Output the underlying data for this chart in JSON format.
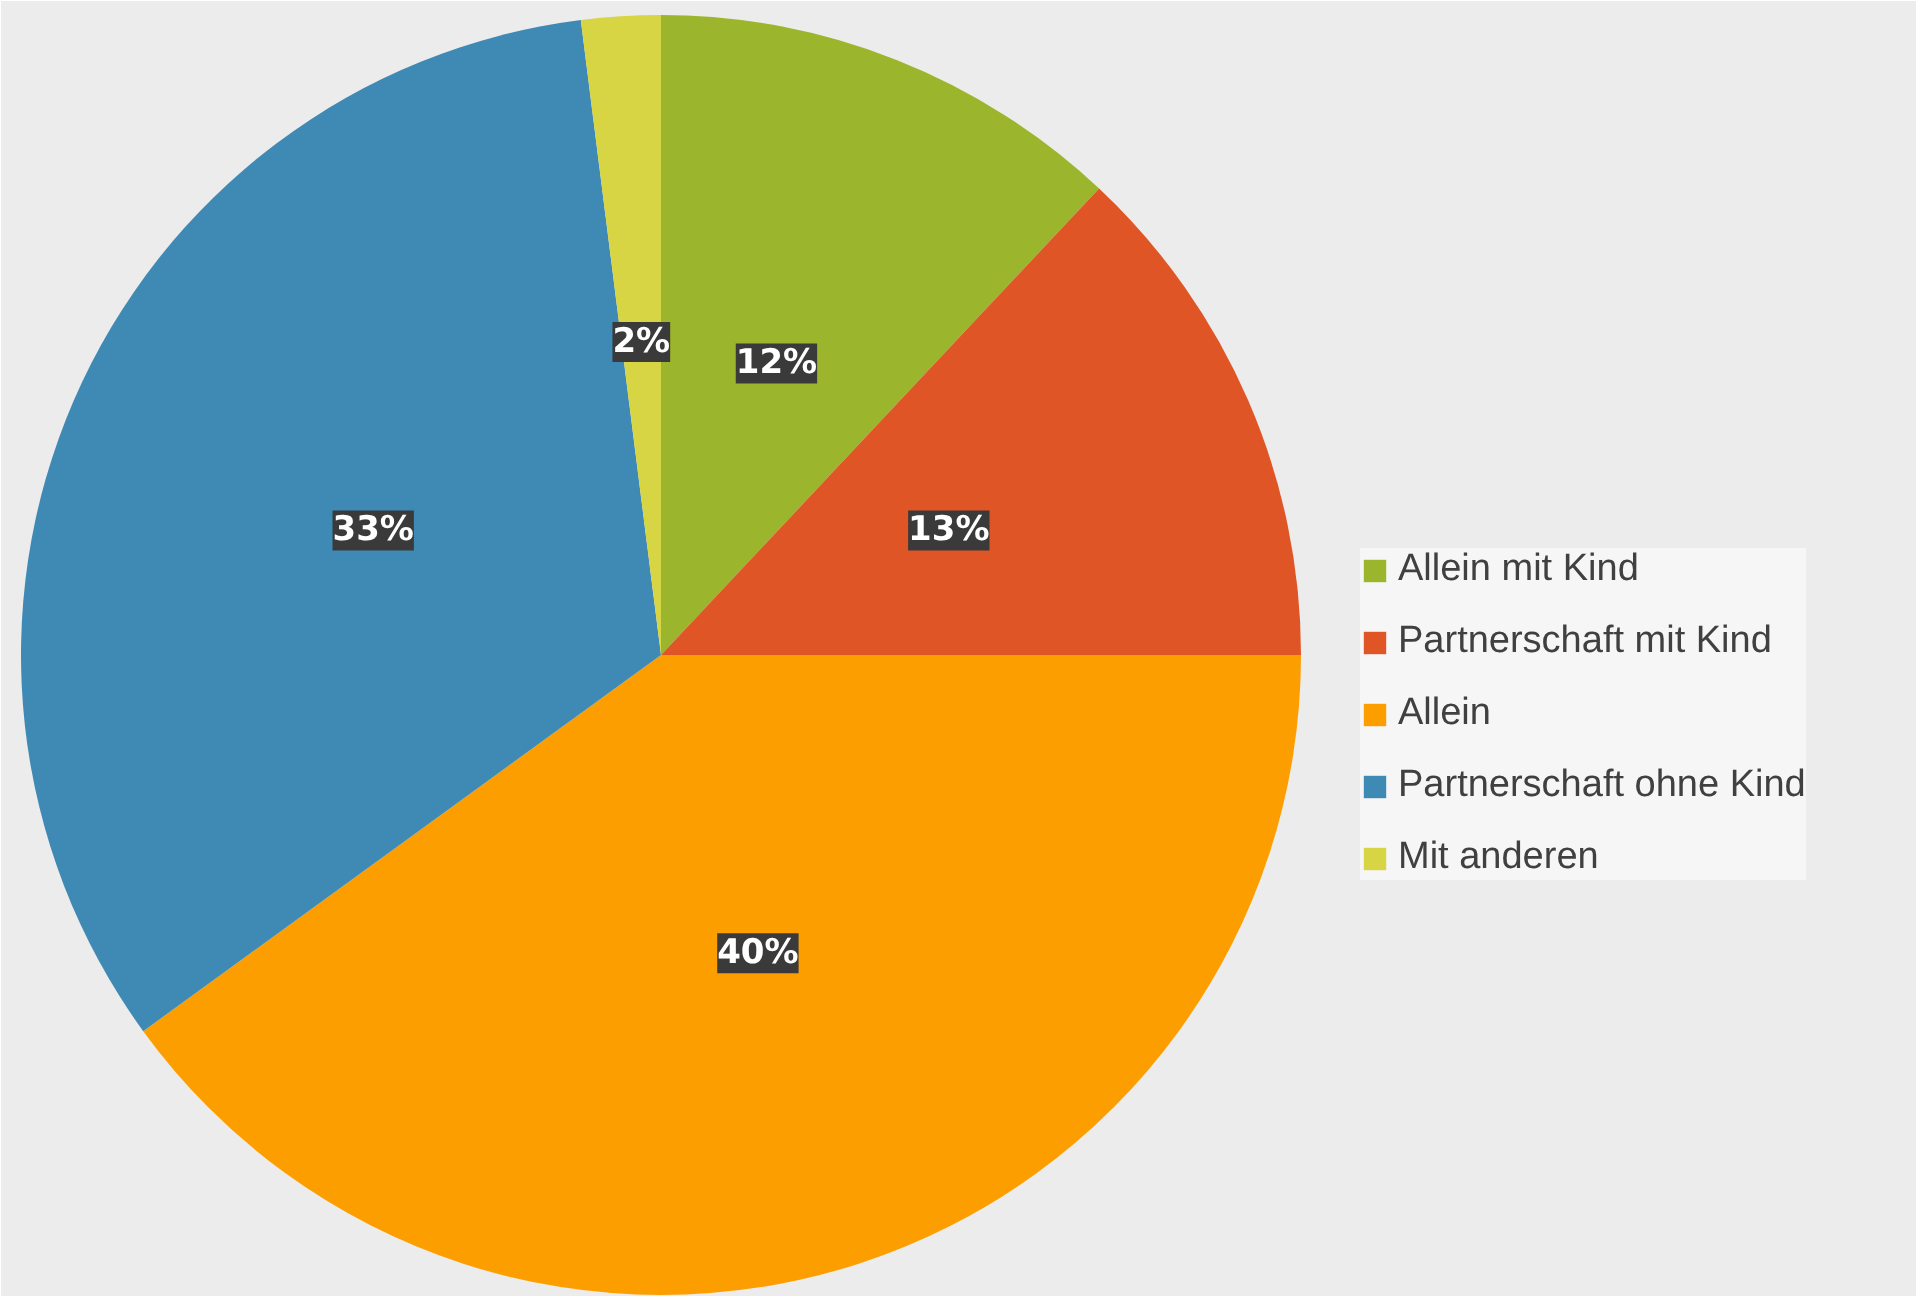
{
  "chart_data": {
    "type": "pie",
    "categories": [
      "Allein mit Kind",
      "Partnerschaft mit Kind",
      "Allein",
      "Partnerschaft ohne Kind",
      "Mit anderen"
    ],
    "values": [
      12,
      13,
      40,
      33,
      2
    ],
    "colors": [
      "#9bb62c",
      "#e05526",
      "#fd9e00",
      "#3f8ab5",
      "#d8d545"
    ],
    "value_labels": [
      "12%",
      "13%",
      "40%",
      "33%",
      "2%"
    ],
    "legend": "right"
  }
}
